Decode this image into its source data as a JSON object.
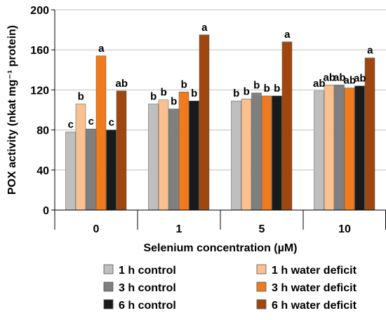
{
  "chart_data": {
    "type": "bar",
    "xlabel": "Selenium concentration (µM)",
    "ylabel": "POX activity (nkat mg⁻¹ protein)",
    "ylim": [
      0,
      200
    ],
    "yticks": [
      0,
      40,
      80,
      120,
      160,
      200
    ],
    "categories": [
      "0",
      "1",
      "5",
      "10"
    ],
    "grid": "horizontal",
    "legend_position": "bottom",
    "series": [
      {
        "name": "1 h control",
        "color": "#BFBFBF",
        "values": [
          78,
          106,
          109,
          119
        ],
        "labels": [
          "c",
          "b",
          "b",
          "ab"
        ]
      },
      {
        "name": "1 h water deficit",
        "color": "#FAC090",
        "values": [
          106,
          110,
          111,
          125
        ],
        "labels": [
          "b",
          "b",
          "b",
          "ab"
        ]
      },
      {
        "name": "3 h control",
        "color": "#7F7F7F",
        "values": [
          81,
          101,
          117,
          125
        ],
        "labels": [
          "c",
          "b",
          "b",
          "ab"
        ]
      },
      {
        "name": "3 h water deficit",
        "color": "#F07A1E",
        "values": [
          154,
          118,
          114,
          122
        ],
        "labels": [
          "a",
          "b",
          "b",
          "ab"
        ]
      },
      {
        "name": "6 h control",
        "color": "#1A1A1A",
        "values": [
          80,
          109,
          114,
          124
        ],
        "labels": [
          "c",
          "b",
          "b",
          "ab"
        ]
      },
      {
        "name": "6 h water deficit",
        "color": "#A0470F",
        "values": [
          119,
          175,
          168,
          152
        ],
        "labels": [
          "ab",
          "a",
          "a",
          "a"
        ]
      }
    ]
  }
}
